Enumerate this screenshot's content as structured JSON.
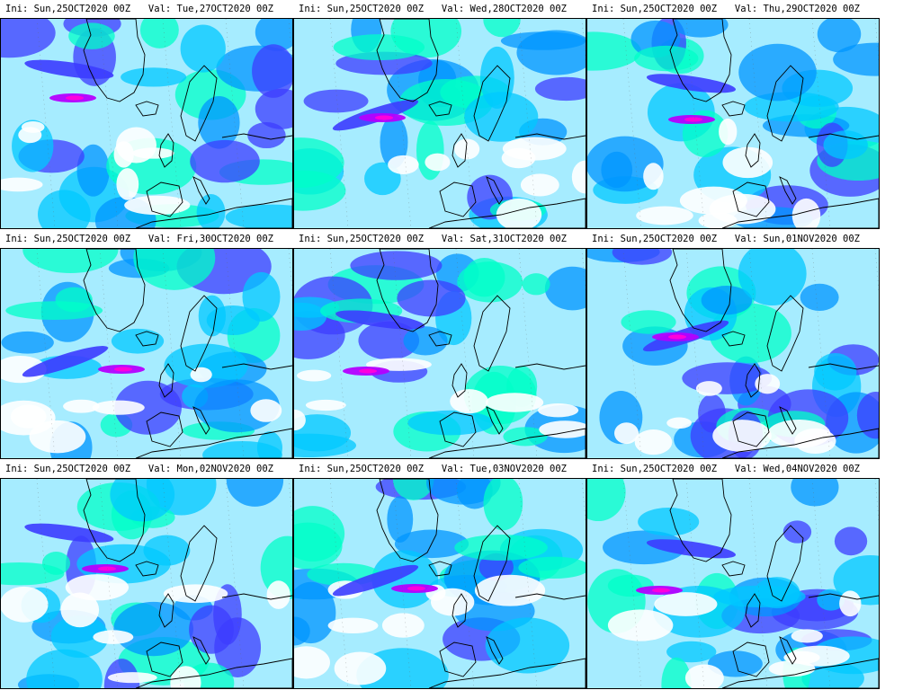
{
  "figure": {
    "panels": [
      {
        "init": "Ini: Sun,25OCT2020  00Z",
        "valid": "Val: Tue,27OCT2020  00Z"
      },
      {
        "init": "Ini: Sun,25OCT2020  00Z",
        "valid": "Val: Wed,28OCT2020  00Z"
      },
      {
        "init": "Ini: Sun,25OCT2020  00Z",
        "valid": "Val: Thu,29OCT2020  00Z"
      },
      {
        "init": "Ini: Sun,25OCT2020  00Z",
        "valid": "Val: Fri,30OCT2020  00Z"
      },
      {
        "init": "Ini: Sun,25OCT2020  00Z",
        "valid": "Val: Sat,31OCT2020  00Z"
      },
      {
        "init": "Ini: Sun,25OCT2020  00Z",
        "valid": "Val: Sun,01NOV2020  00Z"
      },
      {
        "init": "Ini: Sun,25OCT2020  00Z",
        "valid": "Val: Mon,02NOV2020  00Z"
      },
      {
        "init": "Ini: Sun,25OCT2020  00Z",
        "valid": "Val: Tue,03NOV2020  00Z"
      },
      {
        "init": "Ini: Sun,25OCT2020  00Z",
        "valid": "Val: Wed,04NOV2020  00Z"
      }
    ],
    "colors": {
      "background": "#ffffff",
      "field_low": "#00ffc8",
      "field_light": "#00c8ff",
      "field_mid": "#0096ff",
      "field_high": "#3c3cff",
      "field_peak": "#b400ff",
      "field_max": "#ff00dc",
      "coastline": "#000000"
    }
  }
}
